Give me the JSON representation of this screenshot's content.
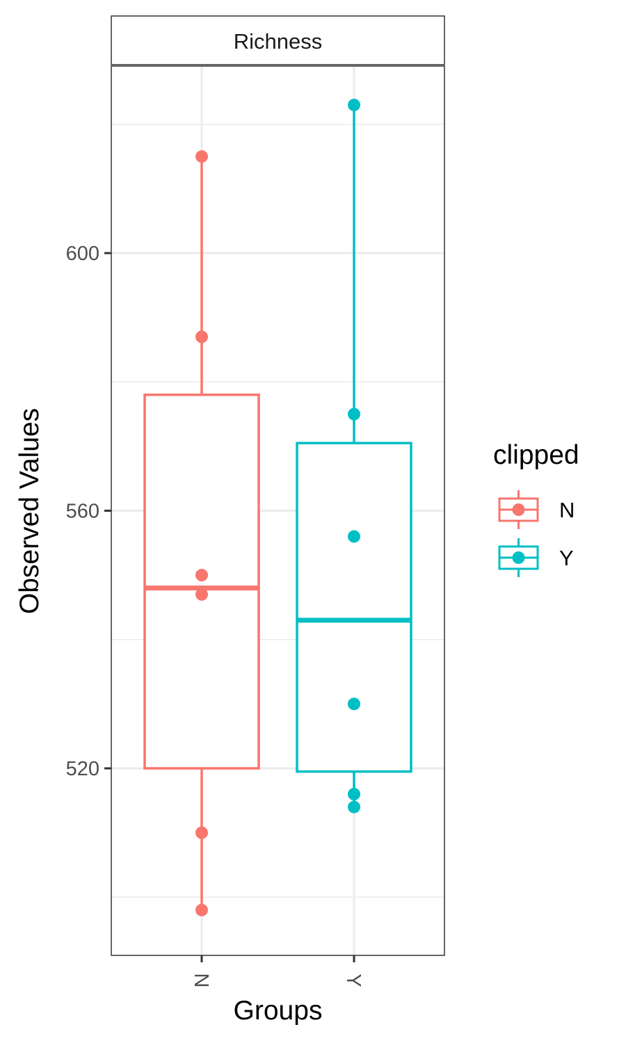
{
  "chart_data": {
    "type": "box",
    "facet_title": "Richness",
    "xlabel": "Groups",
    "ylabel": "Observed Values",
    "categories": [
      "N",
      "Y"
    ],
    "ylim": [
      489,
      628
    ],
    "yticks": [
      520,
      560,
      600
    ],
    "ytick_labels": [
      "520",
      "560",
      "600"
    ],
    "grid": true,
    "legend": {
      "title": "clipped",
      "position": "right",
      "entries": [
        "N",
        "Y"
      ]
    },
    "series": [
      {
        "category": "N",
        "color": "#F8766D",
        "box": {
          "whisker_low": 498,
          "q1": 520,
          "median": 548,
          "q3": 578,
          "whisker_high": 615
        },
        "points": [
          615,
          587,
          550,
          547,
          510,
          498
        ]
      },
      {
        "category": "Y",
        "color": "#00BFC4",
        "box": {
          "whisker_low": 514,
          "q1": 519.5,
          "median": 543,
          "q3": 570.5,
          "whisker_high": 623
        },
        "points": [
          623,
          575,
          556,
          530,
          516,
          514
        ]
      }
    ]
  }
}
